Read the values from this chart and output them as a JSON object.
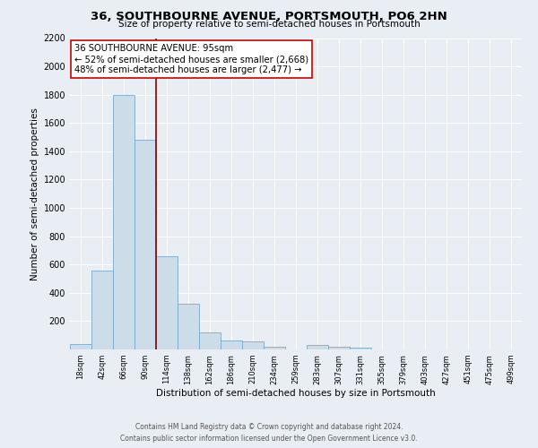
{
  "title": "36, SOUTHBOURNE AVENUE, PORTSMOUTH, PO6 2HN",
  "subtitle": "Size of property relative to semi-detached houses in Portsmouth",
  "xlabel": "Distribution of semi-detached houses by size in Portsmouth",
  "ylabel": "Number of semi-detached properties",
  "bar_labels": [
    "18sqm",
    "42sqm",
    "66sqm",
    "90sqm",
    "114sqm",
    "138sqm",
    "162sqm",
    "186sqm",
    "210sqm",
    "234sqm",
    "259sqm",
    "283sqm",
    "307sqm",
    "331sqm",
    "355sqm",
    "379sqm",
    "403sqm",
    "427sqm",
    "451sqm",
    "475sqm",
    "499sqm"
  ],
  "bar_heights": [
    40,
    560,
    1800,
    1480,
    660,
    325,
    120,
    65,
    55,
    20,
    0,
    30,
    20,
    10,
    0,
    0,
    0,
    0,
    0,
    0,
    0
  ],
  "bar_color": "#ccdce8",
  "bar_edge_color": "#7aaac8",
  "vline_x": 3.5,
  "vline_color": "#880000",
  "annotation_title": "36 SOUTHBOURNE AVENUE: 95sqm",
  "annotation_line1": "← 52% of semi-detached houses are smaller (2,668)",
  "annotation_line2": "48% of semi-detached houses are larger (2,477) →",
  "annotation_box_facecolor": "#ffffff",
  "annotation_box_edgecolor": "#cc0000",
  "ylim": [
    0,
    2200
  ],
  "yticks": [
    0,
    200,
    400,
    600,
    800,
    1000,
    1200,
    1400,
    1600,
    1800,
    2000,
    2200
  ],
  "footer1": "Contains HM Land Registry data © Crown copyright and database right 2024.",
  "footer2": "Contains public sector information licensed under the Open Government Licence v3.0.",
  "bg_color": "#e8eef4",
  "grid_color": "#ffffff"
}
